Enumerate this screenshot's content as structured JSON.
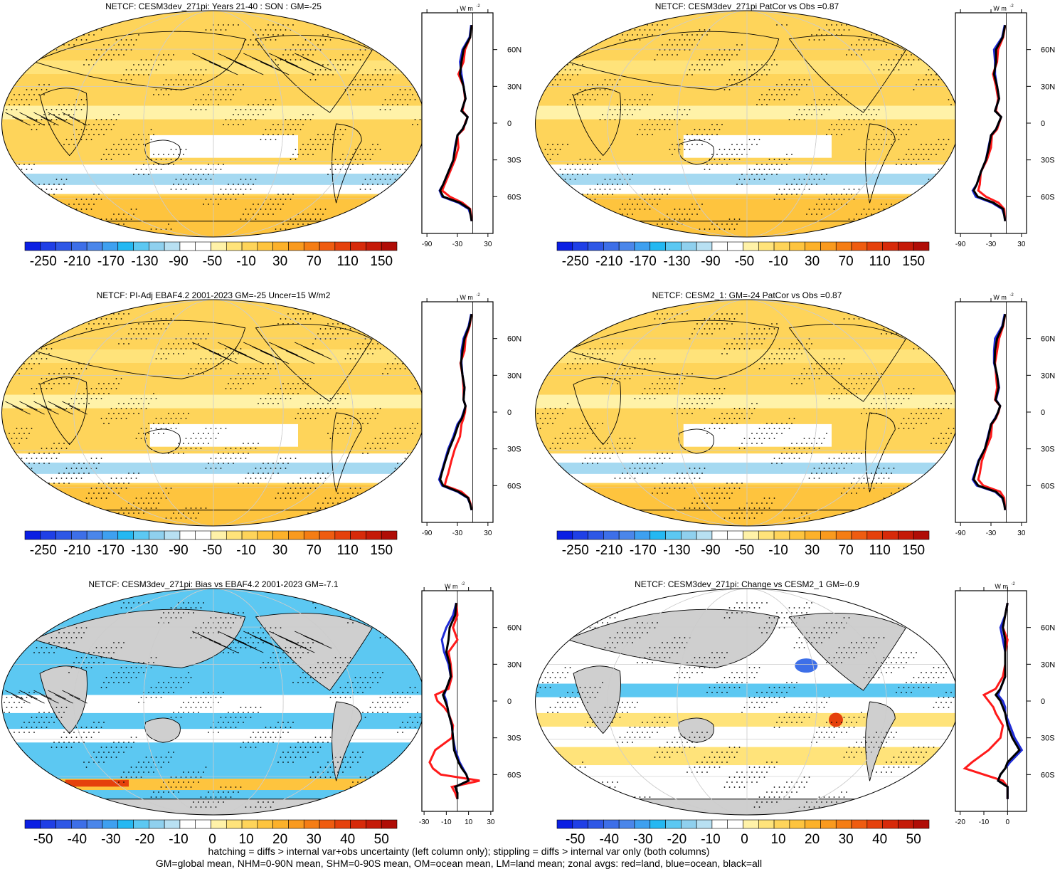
{
  "colors": {
    "land": "#cfcfcf",
    "ocean_mean": "#1f2bd6",
    "land_mean": "#ff1a1a",
    "all_mean": "#000000"
  },
  "palettes": {
    "netcf": [
      "#0b1fe3",
      "#1f3fe6",
      "#2e57e6",
      "#3d6fe8",
      "#4a86ea",
      "#3ea0f0",
      "#24b8f2",
      "#5cc8f2",
      "#8fd0ee",
      "#b8e0f2",
      "#ffffff",
      "#ffffff",
      "#fff2a8",
      "#ffe37a",
      "#fed45a",
      "#fec43e",
      "#fcb12a",
      "#f99a1e",
      "#f57d14",
      "#ef5c10",
      "#e5410c",
      "#d72a0a",
      "#c51a08",
      "#b00d07"
    ],
    "diff": [
      "#0b1fe3",
      "#1f3fe6",
      "#2e57e6",
      "#3d6fe8",
      "#4a86ea",
      "#3ea0f0",
      "#24b8f2",
      "#5cc8f2",
      "#8fd0ee",
      "#b8e0f2",
      "#ffffff",
      "#ffffff",
      "#fff2a8",
      "#ffe37a",
      "#fed45a",
      "#fec43e",
      "#fcb12a",
      "#f99a1e",
      "#f57d14",
      "#ef5c10",
      "#e5410c",
      "#d72a0a",
      "#c51a08",
      "#b00d07"
    ]
  },
  "footer": {
    "line1": "hatching = diffs > internal var+obs uncertainty (left column only); stippling = diffs > internal var only (both columns)",
    "line2": "GM=global mean, NHM=0-90N mean, SHM=0-90S mean, OM=ocean mean, LM=land mean; zonal avgs: red=land, blue=ocean, black=all"
  },
  "chart_data": [
    {
      "type": "heatmap",
      "title": "NETCF: CESM3dev_271pi: Years 21-40 : SON : GM=-25",
      "colorbar": {
        "labels": [
          "-250",
          "-210",
          "-170",
          "-130",
          "-90",
          "-50",
          "-10",
          "30",
          "70",
          "110",
          "150"
        ]
      },
      "zonal_profile": {
        "unit": "W m-2",
        "x_ticks": [
          "-90",
          "-30",
          "30"
        ],
        "xlim": [
          -100,
          40
        ],
        "y_ticks": [
          "60N",
          "30N",
          "0",
          "30S",
          "60S"
        ],
        "lat": [
          80,
          70,
          60,
          50,
          40,
          30,
          20,
          10,
          5,
          0,
          -5,
          -10,
          -20,
          -30,
          -40,
          -50,
          -55,
          -60,
          -65,
          -70,
          -75,
          -80
        ],
        "land": [
          -2,
          -5,
          -15,
          -18,
          -28,
          -18,
          -15,
          -20,
          -10,
          -15,
          -18,
          -30,
          -28,
          -35,
          -45,
          -55,
          -60,
          -45,
          -20,
          -5,
          -3,
          -2
        ],
        "ocean": [
          -3,
          -6,
          -20,
          -25,
          -22,
          -18,
          -14,
          -22,
          -10,
          -14,
          -20,
          -30,
          -35,
          -38,
          -48,
          -58,
          -65,
          -60,
          -28,
          -8,
          -4,
          -2
        ],
        "all": [
          -2,
          -5,
          -18,
          -22,
          -25,
          -18,
          -14,
          -22,
          -10,
          -14,
          -20,
          -30,
          -34,
          -38,
          -48,
          -58,
          -64,
          -58,
          -25,
          -6,
          -4,
          -2
        ]
      }
    },
    {
      "type": "heatmap",
      "title": "NETCF: CESM3dev_271pi PatCor vs Obs =0.87",
      "colorbar": {
        "labels": [
          "-250",
          "-210",
          "-170",
          "-130",
          "-90",
          "-50",
          "-10",
          "30",
          "70",
          "110",
          "150"
        ]
      },
      "zonal_profile": {
        "unit": "W m-2",
        "x_ticks": [
          "-90",
          "-30",
          "30"
        ],
        "xlim": [
          -100,
          40
        ],
        "y_ticks": [
          "60N",
          "30N",
          "0",
          "30S",
          "60S"
        ],
        "lat": [
          80,
          70,
          60,
          50,
          40,
          30,
          20,
          10,
          5,
          0,
          -5,
          -10,
          -20,
          -30,
          -40,
          -50,
          -55,
          -60,
          -65,
          -70,
          -75,
          -80
        ],
        "land": [
          -2,
          -6,
          -16,
          -18,
          -26,
          -20,
          -16,
          -20,
          -10,
          -14,
          -18,
          -28,
          -30,
          -38,
          -50,
          -52,
          -55,
          -40,
          -15,
          -4,
          -3,
          -2
        ],
        "ocean": [
          -3,
          -8,
          -24,
          -22,
          -22,
          -18,
          -14,
          -22,
          -10,
          -15,
          -20,
          -30,
          -35,
          -40,
          -50,
          -58,
          -66,
          -60,
          -28,
          -8,
          -4,
          -2
        ],
        "all": [
          -2,
          -7,
          -20,
          -20,
          -24,
          -18,
          -14,
          -22,
          -10,
          -15,
          -20,
          -30,
          -34,
          -40,
          -50,
          -58,
          -64,
          -56,
          -25,
          -6,
          -4,
          -2
        ]
      }
    },
    {
      "type": "heatmap",
      "title": "NETCF: PI-Adj EBAF4.2 2001-2023 GM=-25 Uncer=15 W/m2",
      "colorbar": {
        "labels": [
          "-250",
          "-210",
          "-170",
          "-130",
          "-90",
          "-50",
          "-10",
          "30",
          "70",
          "110",
          "150"
        ]
      },
      "zonal_profile": {
        "unit": "W m-2",
        "x_ticks": [
          "-90",
          "-30",
          "30"
        ],
        "xlim": [
          -100,
          40
        ],
        "y_ticks": [
          "60N",
          "30N",
          "0",
          "30S",
          "60S"
        ],
        "lat": [
          80,
          70,
          60,
          50,
          40,
          30,
          20,
          10,
          5,
          0,
          -5,
          -10,
          -20,
          -30,
          -40,
          -50,
          -55,
          -60,
          -65,
          -70,
          -75,
          -80
        ],
        "land": [
          -2,
          -6,
          -14,
          -16,
          -24,
          -20,
          -18,
          -18,
          -14,
          -15,
          -18,
          -22,
          -25,
          -35,
          -42,
          -48,
          -52,
          -55,
          -22,
          -8,
          -4,
          -2
        ],
        "ocean": [
          -3,
          -8,
          -18,
          -22,
          -22,
          -20,
          -16,
          -18,
          -14,
          -18,
          -22,
          -30,
          -38,
          -48,
          -55,
          -62,
          -66,
          -60,
          -30,
          -10,
          -5,
          -2
        ],
        "all": [
          -2,
          -7,
          -16,
          -20,
          -23,
          -20,
          -16,
          -18,
          -14,
          -17,
          -21,
          -28,
          -36,
          -46,
          -54,
          -61,
          -64,
          -58,
          -28,
          -9,
          -5,
          -2
        ]
      }
    },
    {
      "type": "heatmap",
      "title": "NETCF: CESM2_1: GM=-24 PatCor vs Obs =0.87",
      "colorbar": {
        "labels": [
          "-250",
          "-210",
          "-170",
          "-130",
          "-90",
          "-50",
          "-10",
          "30",
          "70",
          "110",
          "150"
        ]
      },
      "zonal_profile": {
        "unit": "W m-2",
        "x_ticks": [
          "-90",
          "-30",
          "30"
        ],
        "xlim": [
          -100,
          40
        ],
        "y_ticks": [
          "60N",
          "30N",
          "0",
          "30S",
          "60S"
        ],
        "lat": [
          80,
          70,
          60,
          50,
          40,
          30,
          20,
          10,
          5,
          0,
          -5,
          -10,
          -20,
          -30,
          -40,
          -50,
          -55,
          -60,
          -65,
          -70,
          -75,
          -80
        ],
        "land": [
          -2,
          -6,
          -14,
          -18,
          -22,
          -20,
          -18,
          -22,
          -12,
          -15,
          -20,
          -28,
          -30,
          -40,
          -48,
          -52,
          -55,
          -45,
          -12,
          -4,
          -3,
          -2
        ],
        "ocean": [
          -3,
          -8,
          -22,
          -24,
          -24,
          -18,
          -14,
          -20,
          -12,
          -16,
          -22,
          -30,
          -36,
          -42,
          -55,
          -62,
          -66,
          -58,
          -22,
          -8,
          -4,
          -2
        ],
        "all": [
          -2,
          -7,
          -18,
          -22,
          -23,
          -18,
          -15,
          -21,
          -12,
          -16,
          -21,
          -30,
          -35,
          -42,
          -54,
          -61,
          -64,
          -55,
          -20,
          -7,
          -4,
          -2
        ]
      }
    },
    {
      "type": "heatmap",
      "title": "NETCF: CESM3dev_271pi: Bias vs EBAF4.2 2001-2023  GM=-7.1",
      "colorbar": {
        "labels": [
          "-50",
          "-40",
          "-30",
          "-20",
          "-10",
          "0",
          "10",
          "20",
          "30",
          "40",
          "50"
        ]
      },
      "zonal_profile": {
        "unit": "W m-2",
        "x_ticks": [
          "-30",
          "-10",
          "10",
          "30"
        ],
        "xlim": [
          -32,
          32
        ],
        "y_ticks": [
          "60N",
          "30N",
          "0",
          "30S",
          "60S"
        ],
        "lat": [
          80,
          70,
          60,
          50,
          40,
          30,
          20,
          10,
          5,
          0,
          -5,
          -10,
          -20,
          -30,
          -40,
          -50,
          -55,
          -60,
          -65,
          -70,
          -75,
          -80
        ],
        "land": [
          -1,
          0,
          -4,
          0,
          -8,
          -6,
          -5,
          -8,
          -20,
          -18,
          -12,
          -8,
          -4,
          -5,
          -20,
          -25,
          -22,
          -15,
          20,
          -5,
          -2,
          0
        ],
        "ocean": [
          -1,
          -4,
          -10,
          -14,
          -12,
          -8,
          -6,
          -10,
          -12,
          -10,
          -9,
          -8,
          -5,
          -4,
          -2,
          2,
          5,
          8,
          10,
          -2,
          0,
          0
        ],
        "all": [
          -1,
          -2,
          -7,
          -8,
          -10,
          -7,
          -6,
          -10,
          -13,
          -11,
          -9,
          -8,
          -5,
          -4,
          -3,
          1,
          4,
          8,
          10,
          -2,
          0,
          0
        ]
      }
    },
    {
      "type": "heatmap",
      "title": "NETCF: CESM3dev_271pi: Change vs CESM2_1 GM=-0.9",
      "colorbar": {
        "labels": [
          "-50",
          "-40",
          "-30",
          "-20",
          "-10",
          "0",
          "10",
          "20",
          "30",
          "40",
          "50"
        ]
      },
      "zonal_profile": {
        "unit": "W m-2",
        "x_ticks": [
          "-20",
          "-10",
          "0"
        ],
        "xlim": [
          -22,
          8
        ],
        "y_ticks": [
          "60N",
          "30N",
          "0",
          "30S",
          "60S"
        ],
        "lat": [
          80,
          70,
          60,
          50,
          40,
          30,
          20,
          10,
          5,
          0,
          -5,
          -10,
          -20,
          -30,
          -40,
          -50,
          -55,
          -60,
          -65,
          -70,
          -75,
          -80
        ],
        "land": [
          0,
          -1,
          -2,
          0,
          -1,
          -1,
          -2,
          -5,
          -10,
          -8,
          -6,
          -5,
          -2,
          -3,
          -8,
          -15,
          -18,
          -10,
          -2,
          0,
          0,
          0
        ],
        "ocean": [
          0,
          -1,
          -3,
          -2,
          -1,
          -1,
          -1,
          -3,
          -4,
          -2,
          -1,
          -1,
          1,
          3,
          6,
          1,
          -1,
          -3,
          -4,
          0,
          0,
          0
        ],
        "all": [
          0,
          -1,
          -2,
          -1,
          -1,
          -1,
          -1,
          -3,
          -5,
          -3,
          -2,
          -1,
          0,
          2,
          5,
          0,
          -1,
          -3,
          -4,
          0,
          0,
          0
        ]
      }
    }
  ]
}
